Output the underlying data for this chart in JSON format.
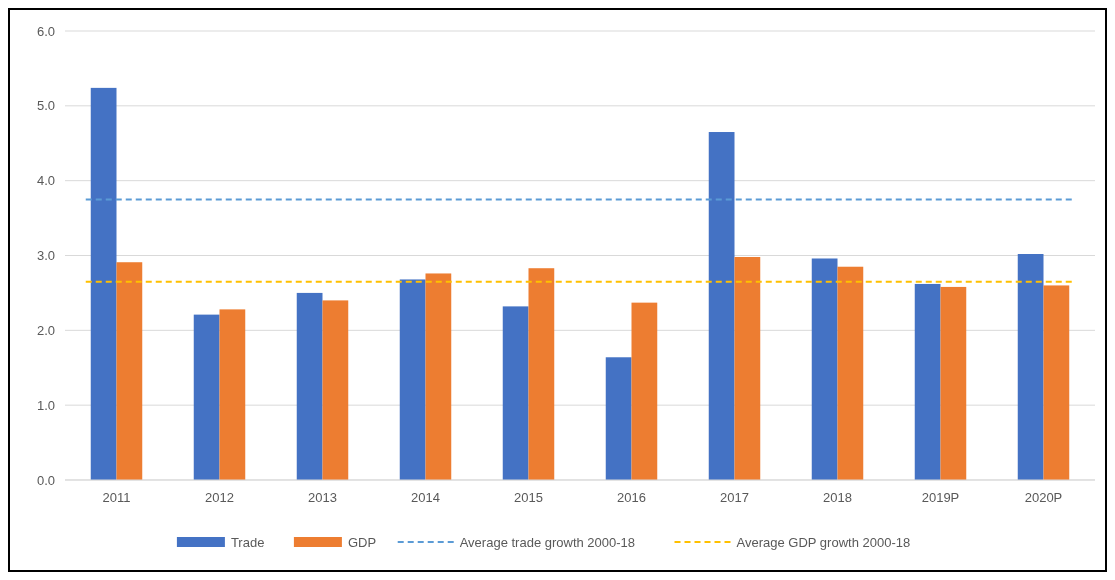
{
  "chart_data": {
    "type": "bar",
    "categories": [
      "2011",
      "2012",
      "2013",
      "2014",
      "2015",
      "2016",
      "2017",
      "2018",
      "2019P",
      "2020P"
    ],
    "series": [
      {
        "name": "Trade",
        "color": "#4472c4",
        "values": [
          5.24,
          2.21,
          2.5,
          2.68,
          2.32,
          1.64,
          4.65,
          2.96,
          2.62,
          3.02
        ]
      },
      {
        "name": "GDP",
        "color": "#ed7d31",
        "values": [
          2.91,
          2.28,
          2.4,
          2.76,
          2.83,
          2.37,
          2.98,
          2.85,
          2.58,
          2.6
        ]
      }
    ],
    "ylim": [
      0,
      6
    ],
    "yticks": [
      {
        "value": 0,
        "label": "0.0"
      },
      {
        "value": 1,
        "label": "1.0"
      },
      {
        "value": 2,
        "label": "2.0"
      },
      {
        "value": 3,
        "label": "3.0"
      },
      {
        "value": 4,
        "label": "4.0"
      },
      {
        "value": 5,
        "label": "5.0"
      },
      {
        "value": 6,
        "label": "6.0"
      }
    ],
    "ref_lines": [
      {
        "axis": "y",
        "value": 3.75,
        "label": "Average trade growth 2000-18",
        "color": "#5b9bd5",
        "line_style": "dashed"
      },
      {
        "axis": "y",
        "value": 2.65,
        "label": "Average GDP growth 2000-18",
        "color": "#ffc000",
        "line_style": "dashed"
      }
    ],
    "grid": "y",
    "legend": "bottom"
  }
}
